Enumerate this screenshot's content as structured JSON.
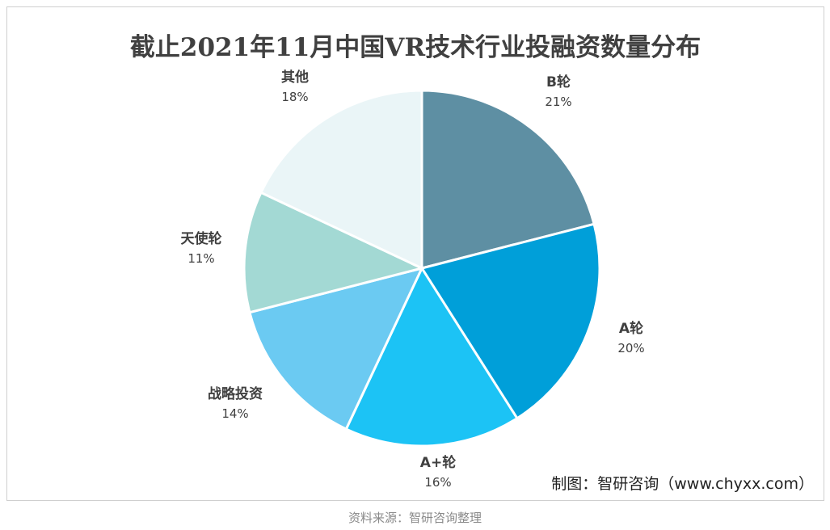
{
  "chart_data": {
    "type": "pie",
    "title": "截止2021年11月中国VR技术行业投融资数量分布",
    "categories": [
      "B轮",
      "A轮",
      "A+轮",
      "战略投资",
      "天使轮",
      "其他"
    ],
    "values": [
      21,
      20,
      16,
      14,
      11,
      18
    ],
    "value_labels": [
      "21%",
      "20%",
      "16%",
      "14%",
      "11%",
      "18%"
    ],
    "colors": [
      "#5e8fa3",
      "#009fd9",
      "#1cc3f5",
      "#6bcaf2",
      "#a3d9d4",
      "#eaf5f7"
    ]
  },
  "credit": "制图：智研咨询（www.chyxx.com）",
  "source": "资料来源：智研咨询整理"
}
